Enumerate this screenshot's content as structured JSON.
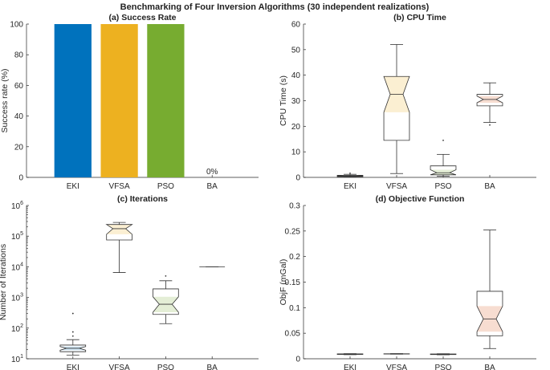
{
  "figure_title": "Benchmarking of Four Inversion Algorithms (30 independent realizations)",
  "chart_data": [
    {
      "id": "a",
      "type": "bar",
      "title": "(a) Success Rate",
      "xlabel": "",
      "ylabel": "Success rate (%)",
      "categories": [
        "EKI",
        "VFSA",
        "PSO",
        "BA"
      ],
      "values": [
        100,
        100,
        100,
        0
      ],
      "colors": [
        "#0072BD",
        "#EDB120",
        "#77AC30",
        "#4DBEEE"
      ],
      "ylim": [
        0,
        100
      ],
      "yticks": [
        0,
        20,
        40,
        60,
        80,
        100
      ],
      "annotations": [
        {
          "category": "BA",
          "text": "0%"
        }
      ]
    },
    {
      "id": "b",
      "type": "box",
      "title": "(b) CPU Time",
      "xlabel": "",
      "ylabel": "CPU Time (s)",
      "scale": "linear",
      "ylim": [
        0,
        60
      ],
      "yticks": [
        0,
        10,
        20,
        30,
        40,
        50,
        60
      ],
      "categories": [
        "EKI",
        "VFSA",
        "PSO",
        "BA"
      ],
      "colors": [
        "#0072BD",
        "#EDB120",
        "#77AC30",
        "#D95319"
      ],
      "boxes": [
        {
          "whislo": 0.2,
          "q1": 0.3,
          "med": 0.5,
          "q3": 0.8,
          "whishi": 1.2,
          "notch_lo": 0.4,
          "notch_hi": 0.6,
          "fliers": [
            1.6
          ]
        },
        {
          "whislo": 1.5,
          "q1": 14.5,
          "med": 32.5,
          "q3": 39.5,
          "whishi": 52,
          "notch_lo": 25.5,
          "notch_hi": 39.5,
          "fliers": []
        },
        {
          "whislo": 0.5,
          "q1": 1.0,
          "med": 1.8,
          "q3": 4.5,
          "whishi": 9,
          "notch_lo": 0.6,
          "notch_hi": 3.0,
          "fliers": [
            14.5
          ]
        },
        {
          "whislo": 21.5,
          "q1": 28,
          "med": 30.5,
          "q3": 32.5,
          "whishi": 37,
          "notch_lo": 29.2,
          "notch_hi": 31.8,
          "fliers": [
            20.5
          ]
        }
      ]
    },
    {
      "id": "c",
      "type": "box",
      "title": "(c) Iterations",
      "xlabel": "",
      "ylabel": "Number of Iterations",
      "scale": "log",
      "ylim": [
        10,
        1000000
      ],
      "yticks": [
        10,
        100,
        1000,
        10000,
        100000,
        1000000
      ],
      "ytick_labels": [
        "10^1",
        "10^2",
        "10^3",
        "10^4",
        "10^5",
        "10^6"
      ],
      "categories": [
        "EKI",
        "VFSA",
        "PSO",
        "BA"
      ],
      "colors": [
        "#0072BD",
        "#EDB120",
        "#77AC30",
        "#D95319"
      ],
      "boxes": [
        {
          "whislo": 13,
          "q1": 17,
          "med": 22,
          "q3": 28,
          "whishi": 42,
          "notch_lo": 19,
          "notch_hi": 25,
          "fliers": [
            55,
            75,
            300
          ]
        },
        {
          "whislo": 6500,
          "q1": 75000,
          "med": 175000,
          "q3": 240000,
          "whishi": 280000,
          "notch_lo": 115000,
          "notch_hi": 240000,
          "fliers": []
        },
        {
          "whislo": 140,
          "q1": 280,
          "med": 600,
          "q3": 1900,
          "whishi": 3500,
          "notch_lo": 330,
          "notch_hi": 1050,
          "fliers": [
            5000
          ]
        },
        {
          "whislo": 10000,
          "q1": 10000,
          "med": 10000,
          "q3": 10000,
          "whishi": 10000,
          "notch_lo": 10000,
          "notch_hi": 10000,
          "fliers": []
        }
      ]
    },
    {
      "id": "d",
      "type": "box",
      "title": "(d) Objective Function",
      "xlabel": "",
      "ylabel": "ObjF (mGal)",
      "scale": "linear",
      "ylim": [
        0,
        0.3
      ],
      "yticks": [
        0,
        0.05,
        0.1,
        0.15,
        0.2,
        0.25,
        0.3
      ],
      "categories": [
        "EKI",
        "VFSA",
        "PSO",
        "BA"
      ],
      "colors": [
        "#0072BD",
        "#EDB120",
        "#77AC30",
        "#D95319"
      ],
      "boxes": [
        {
          "whislo": 0.008,
          "q1": 0.0085,
          "med": 0.009,
          "q3": 0.0095,
          "whishi": 0.01,
          "notch_lo": 0.0087,
          "notch_hi": 0.0093,
          "fliers": []
        },
        {
          "whislo": 0.009,
          "q1": 0.0093,
          "med": 0.0095,
          "q3": 0.0098,
          "whishi": 0.0101,
          "notch_lo": 0.0094,
          "notch_hi": 0.0096,
          "fliers": []
        },
        {
          "whislo": 0.0078,
          "q1": 0.0083,
          "med": 0.0088,
          "q3": 0.0093,
          "whishi": 0.0098,
          "notch_lo": 0.0085,
          "notch_hi": 0.0091,
          "fliers": []
        },
        {
          "whislo": 0.02,
          "q1": 0.045,
          "med": 0.078,
          "q3": 0.132,
          "whishi": 0.252,
          "notch_lo": 0.053,
          "notch_hi": 0.103,
          "fliers": []
        }
      ]
    }
  ]
}
